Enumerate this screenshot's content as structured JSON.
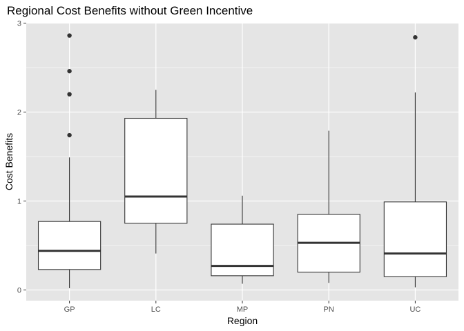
{
  "chart_data": {
    "type": "boxplot",
    "title": "Regional Cost Benefits without Green Incentive",
    "xlabel": "Region",
    "ylabel": "Cost Benefits",
    "ylim": [
      -0.09,
      3.0
    ],
    "yticks": [
      0,
      1,
      2,
      3
    ],
    "grid": true,
    "legend": "none",
    "categories": [
      "GP",
      "LC",
      "MP",
      "PN",
      "UC"
    ],
    "boxes": [
      {
        "category": "GP",
        "whisker_low": 0.02,
        "q1": 0.23,
        "median": 0.44,
        "q3": 0.77,
        "whisker_high": 1.49,
        "outliers": [
          1.74,
          2.2,
          2.46,
          2.86
        ]
      },
      {
        "category": "LC",
        "whisker_low": 0.41,
        "q1": 0.75,
        "median": 1.05,
        "q3": 1.93,
        "whisker_high": 2.25,
        "outliers": []
      },
      {
        "category": "MP",
        "whisker_low": 0.07,
        "q1": 0.16,
        "median": 0.27,
        "q3": 0.74,
        "whisker_high": 1.06,
        "outliers": []
      },
      {
        "category": "PN",
        "whisker_low": 0.08,
        "q1": 0.2,
        "median": 0.53,
        "q3": 0.85,
        "whisker_high": 1.79,
        "outliers": []
      },
      {
        "category": "UC",
        "whisker_low": 0.03,
        "q1": 0.15,
        "median": 0.41,
        "q3": 0.99,
        "whisker_high": 2.22,
        "outliers": [
          2.84
        ]
      }
    ],
    "colors": {
      "panel": "#e5e5e5",
      "grid_major": "#ffffff",
      "box_fill": "#ffffff",
      "box_stroke": "#333333",
      "point": "#333333",
      "tick": "#333333"
    }
  }
}
